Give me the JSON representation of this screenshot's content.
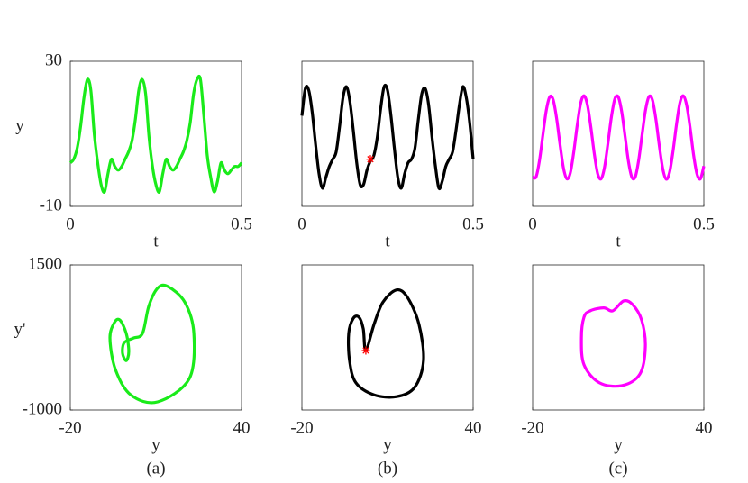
{
  "chart_data": [
    {
      "type": "line",
      "color": "#1aeb1a",
      "xlabel": "t",
      "ylabel": "y",
      "xlim": [
        0,
        0.5
      ],
      "ylim": [
        -10,
        30
      ],
      "xticks": [
        0,
        0.5
      ],
      "yticks": [
        -10,
        30
      ],
      "x": [
        0,
        0.01,
        0.02,
        0.03,
        0.04,
        0.05,
        0.06,
        0.07,
        0.08,
        0.09,
        0.1,
        0.11,
        0.12,
        0.13,
        0.14,
        0.15,
        0.16,
        0.17,
        0.18,
        0.19,
        0.2,
        0.21,
        0.22,
        0.23,
        0.24,
        0.25,
        0.26,
        0.27,
        0.28,
        0.29,
        0.3,
        0.31,
        0.32,
        0.33,
        0.34,
        0.35,
        0.36,
        0.37,
        0.38,
        0.39,
        0.4,
        0.41,
        0.42,
        0.43,
        0.44,
        0.45,
        0.46,
        0.47,
        0.48,
        0.49,
        0.5
      ],
      "values": [
        2,
        3,
        6,
        12,
        20,
        25,
        22,
        10,
        2,
        -4,
        -6,
        -1,
        3,
        1,
        0,
        1,
        3,
        5,
        8,
        14,
        22,
        25,
        21,
        9,
        1,
        -4,
        -6,
        -1,
        3,
        1,
        0,
        1,
        3,
        5,
        8,
        13,
        21,
        25,
        25,
        15,
        4,
        -2,
        -6,
        -3,
        2,
        0,
        -1,
        0,
        1,
        1,
        2
      ]
    },
    {
      "type": "line",
      "color": "#000000",
      "xlabel": "t",
      "xlim": [
        0,
        0.5
      ],
      "ylim": [
        -10,
        30
      ],
      "xticks": [
        0,
        0.5
      ],
      "x": [
        0,
        0.01,
        0.02,
        0.03,
        0.04,
        0.05,
        0.06,
        0.07,
        0.08,
        0.09,
        0.1,
        0.11,
        0.12,
        0.13,
        0.14,
        0.15,
        0.16,
        0.17,
        0.18,
        0.19,
        0.2,
        0.21,
        0.22,
        0.23,
        0.24,
        0.25,
        0.26,
        0.27,
        0.28,
        0.29,
        0.3,
        0.31,
        0.32,
        0.33,
        0.34,
        0.35,
        0.36,
        0.37,
        0.38,
        0.39,
        0.4,
        0.41,
        0.42,
        0.43,
        0.44,
        0.45,
        0.46,
        0.47,
        0.48,
        0.49,
        0.5
      ],
      "values": [
        15,
        22.5,
        22,
        16,
        7,
        -1,
        -5,
        -2,
        1,
        3,
        5,
        12,
        20,
        23,
        19,
        11,
        2,
        -4,
        -4,
        0,
        2.5,
        4,
        9,
        17,
        23,
        22,
        15,
        6,
        -2,
        -5,
        -1,
        2,
        3,
        6,
        14,
        21,
        22.5,
        18,
        9,
        1,
        -5,
        -3,
        1,
        3,
        5,
        11,
        18,
        23,
        20,
        13,
        3
      ],
      "marker": {
        "x": 0.2,
        "y": 3,
        "color": "#ff0000"
      }
    },
    {
      "type": "line",
      "color": "#ff00ff",
      "xlabel": "t",
      "xlim": [
        0,
        0.5
      ],
      "ylim": [
        -10,
        30
      ],
      "xticks": [
        0,
        0.5
      ],
      "x": [
        0,
        0.01,
        0.02,
        0.03,
        0.04,
        0.05,
        0.06,
        0.07,
        0.08,
        0.09,
        0.1,
        0.11,
        0.12,
        0.13,
        0.14,
        0.15,
        0.16,
        0.17,
        0.18,
        0.19,
        0.2,
        0.21,
        0.22,
        0.23,
        0.24,
        0.25,
        0.26,
        0.27,
        0.28,
        0.29,
        0.3,
        0.31,
        0.32,
        0.33,
        0.34,
        0.35,
        0.36,
        0.37,
        0.38,
        0.39,
        0.4,
        0.41,
        0.42,
        0.43,
        0.44,
        0.45,
        0.46,
        0.47,
        0.48,
        0.49,
        0.5
      ],
      "values": [
        -1.9,
        -1.9,
        2.6,
        9.7,
        16.5,
        20.2,
        19.4,
        14.3,
        7.1,
        0.6,
        -2.4,
        -0.8,
        4.9,
        12.2,
        18.3,
        20.5,
        18,
        11.9,
        4.6,
        -1,
        -2.4,
        0.8,
        7.4,
        14.6,
        19.6,
        20.2,
        16.2,
        9.3,
        2.3,
        -2,
        -1.8,
        2.9,
        10,
        16.7,
        20.3,
        19.3,
        14,
        6.7,
        0.4,
        -2.5,
        -0.6,
        5.2,
        12.5,
        18.5,
        20.5,
        17.8,
        11.6,
        4.2,
        -1.1,
        -2.4,
        1.1
      ]
    },
    {
      "type": "line",
      "color": "#1aeb1a",
      "closed": true,
      "xlabel": "y",
      "ylabel": "y'",
      "caption": "(a)",
      "xlim": [
        -20,
        40
      ],
      "ylim": [
        -1000,
        1500
      ],
      "xticks": [
        -20,
        40
      ],
      "yticks": [
        -1000,
        1500
      ],
      "x": [
        14.1,
        20.1,
        23.3,
        21.7,
        10.6,
        1.2,
        -4.2,
        -6.1,
        -4.5,
        -2.6,
        -0.4,
        0.5,
        -0.4,
        -1.7,
        -1.1,
        2.1,
        5.3,
        7.5,
        10.6
      ],
      "values": [
        1130,
        860,
        320,
        -460,
        -860,
        -740,
        -300,
        240,
        510,
        550,
        320,
        10,
        -150,
        -20,
        160,
        240,
        320,
        790,
        1100
      ]
    },
    {
      "type": "line",
      "color": "#000000",
      "closed": true,
      "xlabel": "y",
      "caption": "(b)",
      "xlim": [
        -20,
        40
      ],
      "ylim": [
        -1000,
        1500
      ],
      "xticks": [
        -20,
        40
      ],
      "x": [
        2.4,
        5.3,
        8.4,
        13.2,
        17,
        21,
        22.6,
        19.5,
        13.2,
        5.3,
        -1.1,
        -3.3,
        -3.6,
        -2,
        0,
        1.5
      ],
      "values": [
        25,
        480,
        860,
        1070,
        940,
        480,
        -150,
        -610,
        -770,
        -740,
        -530,
        -150,
        320,
        580,
        600,
        400
      ],
      "marker": {
        "x": 2.4,
        "y": 25,
        "color": "#ff0000"
      }
    },
    {
      "type": "line",
      "color": "#ff00ff",
      "closed": true,
      "xlabel": "y",
      "caption": "(c)",
      "xlim": [
        -20,
        40
      ],
      "ylim": [
        -1000,
        1500
      ],
      "xticks": [
        -20,
        40
      ],
      "x": [
        0.2,
        4.9,
        8.1,
        11.9,
        15,
        18.2,
        19.5,
        17.6,
        11.3,
        3.4,
        -2,
        -2.9,
        -2
      ],
      "values": [
        710,
        760,
        710,
        880,
        820,
        550,
        90,
        -380,
        -580,
        -530,
        -220,
        240,
        600
      ]
    }
  ]
}
